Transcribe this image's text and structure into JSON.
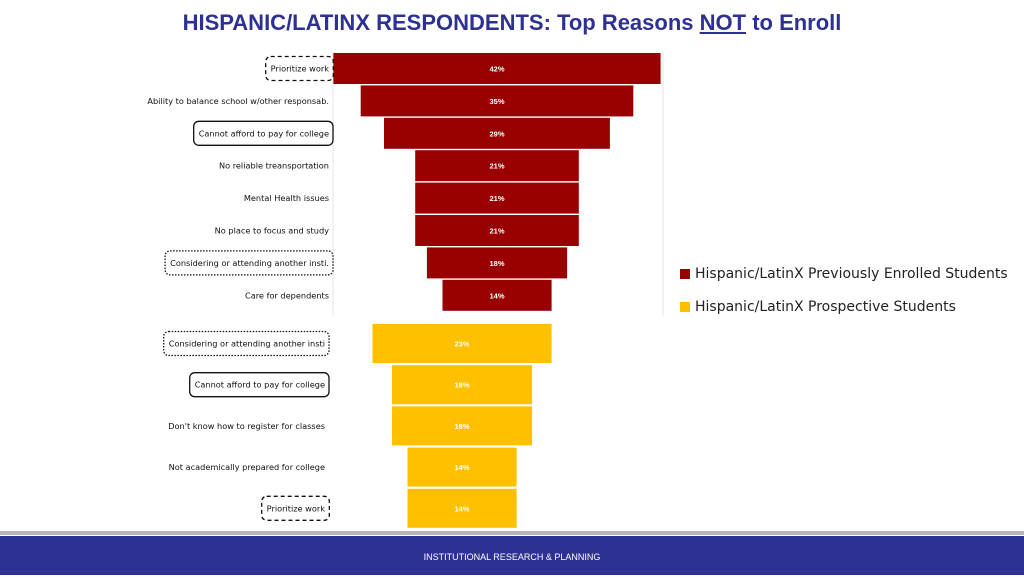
{
  "title": {
    "part1": "HISPANIC/LATINX RESPONDENTS:  Top Reasons ",
    "underlined": "NOT",
    "part2": " to Enroll"
  },
  "colors": {
    "previously_enrolled": "#990000",
    "prospective": "#ffc000",
    "title": "#2e3192",
    "footer": "#2e3192"
  },
  "chart_data": {
    "type": "bar",
    "orientation": "horizontal-funnel",
    "series": [
      {
        "name": "Hispanic/LatinX Previously Enrolled Students",
        "color": "#990000",
        "items": [
          {
            "label": "Prioritize work",
            "value": 42,
            "value_label": "42%",
            "box": "dashed"
          },
          {
            "label": "Ability to balance school w/other responsab.",
            "value": 35,
            "value_label": "35%",
            "box": "none"
          },
          {
            "label": "Cannot afford to pay for college",
            "value": 29,
            "value_label": "29%",
            "box": "solid"
          },
          {
            "label": "No reliable treansportation",
            "value": 21,
            "value_label": "21%",
            "box": "none"
          },
          {
            "label": "Mental Health issues",
            "value": 21,
            "value_label": "21%",
            "box": "none"
          },
          {
            "label": "No place to focus and study",
            "value": 21,
            "value_label": "21%",
            "box": "none"
          },
          {
            "label": "Considering or attending another insti.",
            "value": 18,
            "value_label": "18%",
            "box": "dotted"
          },
          {
            "label": "Care for dependents",
            "value": 14,
            "value_label": "14%",
            "box": "none"
          }
        ]
      },
      {
        "name": "Hispanic/LatinX Prospective Students",
        "color": "#ffc000",
        "items": [
          {
            "label": "Considering or attending another insti",
            "value": 23,
            "value_label": "23%",
            "box": "dotted"
          },
          {
            "label": "Cannot afford to pay for college",
            "value": 18,
            "value_label": "18%",
            "box": "solid"
          },
          {
            "label": "Don't know how to register for classes",
            "value": 18,
            "value_label": "18%",
            "box": "none"
          },
          {
            "label": "Not academically prepared for college",
            "value": 14,
            "value_label": "14%",
            "box": "none"
          },
          {
            "label": "Prioritize work",
            "value": 14,
            "value_label": "14%",
            "box": "dashed"
          }
        ]
      }
    ],
    "legend_position": "right"
  },
  "legend": {
    "items": [
      {
        "label": "Hispanic/LatinX Previously Enrolled Students",
        "color": "#990000"
      },
      {
        "label": "Hispanic/LatinX Prospective Students",
        "color": "#ffc000"
      }
    ]
  },
  "footer": {
    "text": "INSTITUTIONAL RESEARCH & PLANNING"
  }
}
